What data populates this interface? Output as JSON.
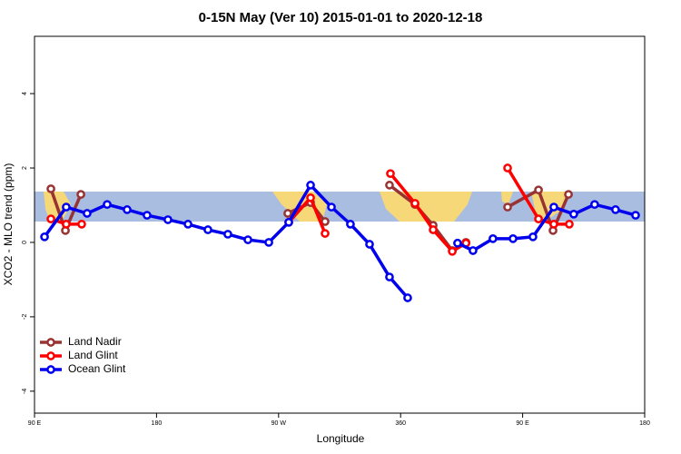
{
  "chart_data": {
    "type": "line",
    "title": "0-15N May (Ver 10)   2015-01-01 to 2020-12-18",
    "x_label": "Longitude",
    "y_label": "XCO2 - MLO trend (ppm)",
    "xlim": [
      90,
      540
    ],
    "ylim": [
      -4.59,
      5.54
    ],
    "xticks": [
      {
        "value": 90,
        "label": "90 E"
      },
      180,
      {
        "value": 270,
        "label": "90 W"
      },
      360,
      {
        "value": 450,
        "label": "90 E"
      },
      {
        "value": 540,
        "label": "180"
      }
    ],
    "yticks": [
      -4,
      -2,
      0,
      2,
      4
    ],
    "legend": "bottom-left",
    "series": [
      {
        "name": "Land Nadir",
        "color": "#993333",
        "x": [
          102.1,
          112.8,
          124.2,
          null,
          276.8,
          293.6,
          304.3,
          null,
          351.8,
          370.6,
          384.0,
          398.1,
          408.2,
          null,
          438.9,
          461.7,
          472.4,
          483.8
        ],
        "values": [
          1.44,
          0.32,
          1.29,
          null,
          0.78,
          1.07,
          0.56,
          null,
          1.54,
          1.02,
          0.46,
          -0.22,
          0.0,
          null,
          0.95,
          1.41,
          0.32,
          1.29
        ]
      },
      {
        "name": "Land Glint",
        "color": "#ff0000",
        "x": [
          102.1,
          113.4,
          124.8,
          null,
          277.5,
          293.6,
          304.3,
          null,
          352.5,
          370.6,
          384.0,
          398.1,
          408.2,
          null,
          438.9,
          461.7,
          473.0,
          484.4
        ],
        "values": [
          0.63,
          0.49,
          0.49,
          null,
          0.54,
          1.2,
          0.24,
          null,
          1.85,
          1.05,
          0.34,
          -0.24,
          -0.02,
          null,
          2.0,
          0.63,
          0.49,
          0.49
        ]
      },
      {
        "name": "Ocean Glint",
        "color": "#0000ee",
        "x": [
          97.4,
          113.4,
          128.8,
          143.6,
          158.3,
          173.0,
          188.4,
          203.2,
          217.9,
          232.6,
          247.4,
          262.8,
          277.5,
          293.6,
          309.0,
          323.0,
          337.1,
          351.8,
          365.2,
          null,
          402.0,
          413.4,
          428.1,
          442.9,
          457.6,
          473.0,
          487.7,
          503.1,
          518.5,
          533.3
        ],
        "values": [
          0.15,
          0.95,
          0.78,
          1.02,
          0.88,
          0.73,
          0.61,
          0.49,
          0.34,
          0.22,
          0.07,
          0.0,
          0.54,
          1.54,
          0.95,
          0.49,
          -0.05,
          -0.93,
          -1.49,
          null,
          -0.02,
          -0.22,
          0.1,
          0.1,
          0.15,
          0.95,
          0.76,
          1.02,
          0.88,
          0.73
        ]
      }
    ]
  }
}
